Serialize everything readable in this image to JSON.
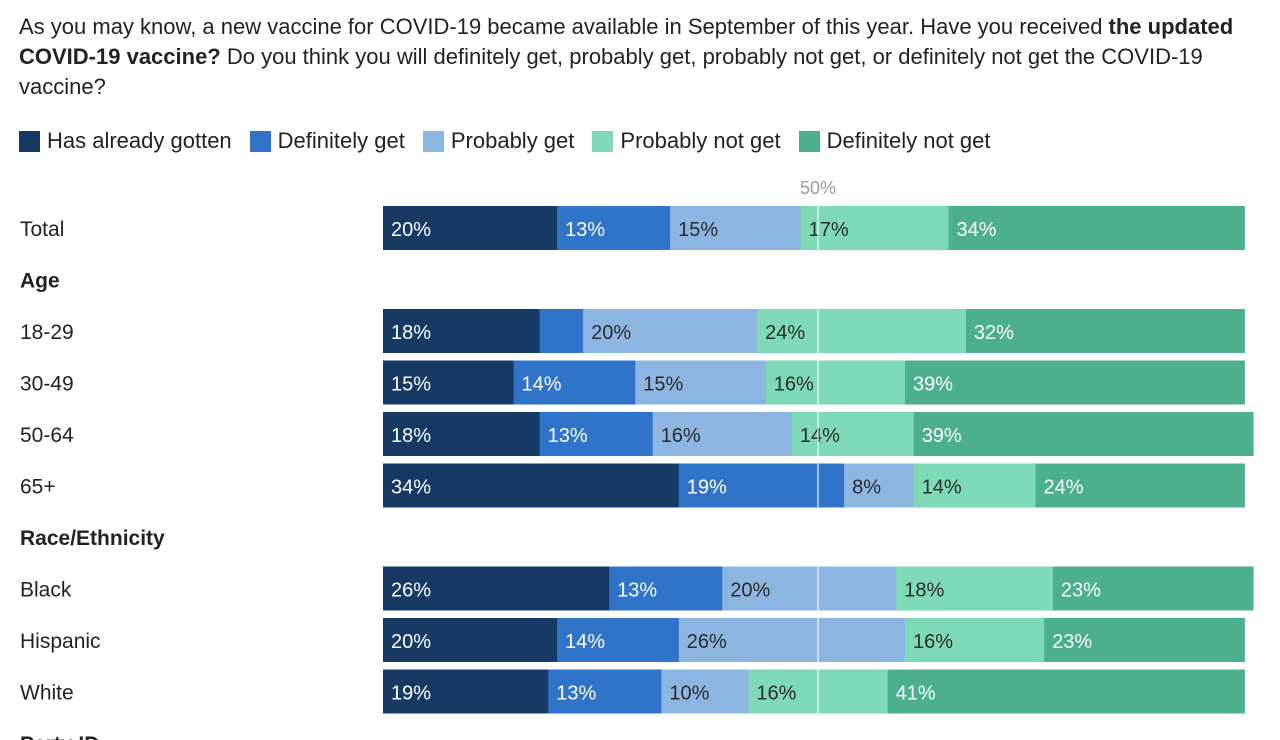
{
  "question": {
    "part1": "As you may know, a new vaccine for COVID-19 became available in September of this year. Have you received ",
    "bold": "the updated COVID-19 vaccine?",
    "part2": " Do you think you will definitely get, probably get, probably not get, or definitely not get the COVID-19 vaccine?"
  },
  "legend": [
    {
      "label": "Has already gotten",
      "color": "#163a63"
    },
    {
      "label": "Definitely get",
      "color": "#2f74c9"
    },
    {
      "label": "Probably get",
      "color": "#8db5e2"
    },
    {
      "label": "Probably not get",
      "color": "#7dd9b6"
    },
    {
      "label": "Definitely not get",
      "color": "#4caf8e"
    }
  ],
  "chart_data": {
    "type": "bar",
    "orientation": "horizontal",
    "stacked": true,
    "midline_label": "50%",
    "series": [
      {
        "name": "Has already gotten",
        "color": "#163a63"
      },
      {
        "name": "Definitely get",
        "color": "#2f74c9"
      },
      {
        "name": "Probably get",
        "color": "#8db5e2"
      },
      {
        "name": "Probably not get",
        "color": "#7dd9b6"
      },
      {
        "name": "Definitely not get",
        "color": "#4caf8e"
      }
    ],
    "rows": [
      {
        "kind": "bar",
        "label": "Total",
        "values": [
          20,
          13,
          15,
          17,
          34
        ],
        "labels": [
          "20%",
          "13%",
          "15%",
          "17%",
          "34%"
        ]
      },
      {
        "kind": "header",
        "label": "Age"
      },
      {
        "kind": "bar",
        "label": "18-29",
        "values": [
          18,
          5,
          20,
          24,
          32
        ],
        "labels": [
          "18%",
          "",
          "20%",
          "24%",
          "32%"
        ]
      },
      {
        "kind": "bar",
        "label": "30-49",
        "values": [
          15,
          14,
          15,
          16,
          39
        ],
        "labels": [
          "15%",
          "14%",
          "15%",
          "16%",
          "39%"
        ]
      },
      {
        "kind": "bar",
        "label": "50-64",
        "values": [
          18,
          13,
          16,
          14,
          39
        ],
        "labels": [
          "18%",
          "13%",
          "16%",
          "14%",
          "39%"
        ]
      },
      {
        "kind": "bar",
        "label": "65+",
        "values": [
          34,
          19,
          8,
          14,
          24
        ],
        "labels": [
          "34%",
          "19%",
          "8%",
          "14%",
          "24%"
        ]
      },
      {
        "kind": "header",
        "label": "Race/Ethnicity"
      },
      {
        "kind": "bar",
        "label": "Black",
        "values": [
          26,
          13,
          20,
          18,
          23
        ],
        "labels": [
          "26%",
          "13%",
          "20%",
          "18%",
          "23%"
        ]
      },
      {
        "kind": "bar",
        "label": "Hispanic",
        "values": [
          20,
          14,
          26,
          16,
          23
        ],
        "labels": [
          "20%",
          "14%",
          "26%",
          "16%",
          "23%"
        ]
      },
      {
        "kind": "bar",
        "label": "White",
        "values": [
          19,
          13,
          10,
          16,
          41
        ],
        "labels": [
          "19%",
          "13%",
          "10%",
          "16%",
          "41%"
        ]
      },
      {
        "kind": "header",
        "label": "Party ID"
      }
    ]
  }
}
